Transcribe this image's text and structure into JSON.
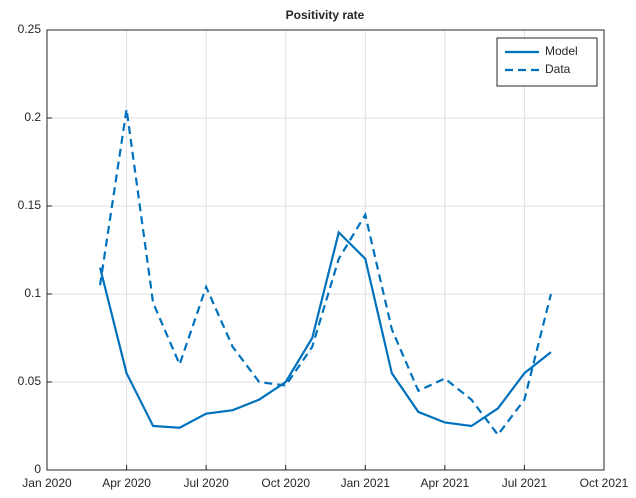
{
  "chart_data": {
    "type": "line",
    "title": "Positivity rate",
    "x": [
      "2020-03",
      "2020-04",
      "2020-05",
      "2020-06",
      "2020-07",
      "2020-08",
      "2020-09",
      "2020-10",
      "2020-11",
      "2020-12",
      "2021-01",
      "2021-02",
      "2021-03",
      "2021-04",
      "2021-05",
      "2021-06",
      "2021-07",
      "2021-08"
    ],
    "series": [
      {
        "name": "Model",
        "color": "#0072bd",
        "dash": "solid",
        "values": [
          0.115,
          0.055,
          0.025,
          0.024,
          0.032,
          0.034,
          0.04,
          0.05,
          0.075,
          0.135,
          0.12,
          0.055,
          0.033,
          0.027,
          0.025,
          0.035,
          0.055,
          0.067
        ]
      },
      {
        "name": "Data",
        "color": "#0072bd",
        "dash": "dashed",
        "values": [
          0.105,
          0.205,
          0.095,
          0.06,
          0.104,
          0.07,
          0.05,
          0.048,
          0.07,
          0.12,
          0.145,
          0.08,
          0.045,
          0.052,
          0.04,
          0.02,
          0.04,
          0.1
        ]
      }
    ],
    "xlim": [
      "2020-01",
      "2021-10"
    ],
    "xticks": [
      {
        "value": "2020-01",
        "label": "Jan 2020"
      },
      {
        "value": "2020-04",
        "label": "Apr 2020"
      },
      {
        "value": "2020-07",
        "label": "Jul 2020"
      },
      {
        "value": "2020-10",
        "label": "Oct 2020"
      },
      {
        "value": "2021-01",
        "label": "Jan 2021"
      },
      {
        "value": "2021-04",
        "label": "Apr 2021"
      },
      {
        "value": "2021-07",
        "label": "Jul 2021"
      },
      {
        "value": "2021-10",
        "label": "Oct 2021"
      }
    ],
    "ylim": [
      0,
      0.25
    ],
    "yticks": [
      0,
      0.05,
      0.1,
      0.15,
      0.2,
      0.25
    ],
    "grid": true,
    "legend": "upper-right"
  }
}
